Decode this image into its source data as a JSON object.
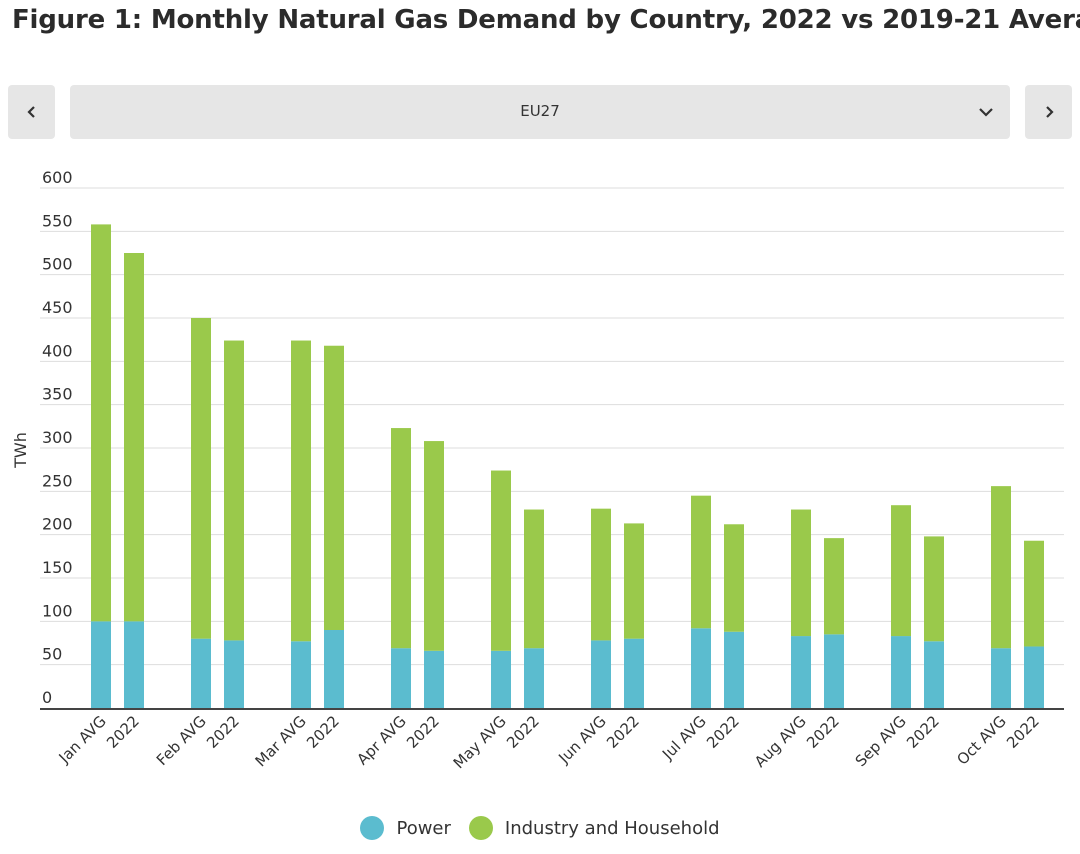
{
  "title": "Figure 1: Monthly Natural Gas Demand by Country, 2022 vs 2019-21 Average",
  "selector": {
    "value": "EU27"
  },
  "colors": {
    "power": "#5bbccf",
    "industry": "#9ac94b",
    "grid": "#dddddd",
    "axis": "#444444"
  },
  "chart_data": {
    "type": "bar",
    "stacked": true,
    "title": "Figure 1: Monthly Natural Gas Demand by Country, 2022 vs 2019-21 Average",
    "ylabel": "TWh",
    "xlabel": "",
    "ylim": [
      0,
      600
    ],
    "yticks": [
      "600",
      "550",
      "500",
      "450",
      "400",
      "350",
      "300",
      "250",
      "200",
      "150",
      "100",
      "50",
      "0"
    ],
    "categories": [
      "Jan AVG",
      "2022",
      "Feb AVG",
      "2022",
      "Mar AVG",
      "2022",
      "Apr AVG",
      "2022",
      "May AVG",
      "2022",
      "Jun AVG",
      "2022",
      "Jul AVG",
      "2022",
      "Aug AVG",
      "2022",
      "Sep AVG",
      "2022",
      "Oct AVG",
      "2022"
    ],
    "series": [
      {
        "name": "Power",
        "values": [
          100,
          100,
          80,
          78,
          77,
          90,
          69,
          66,
          66,
          69,
          78,
          80,
          92,
          88,
          83,
          85,
          83,
          77,
          69,
          71
        ]
      },
      {
        "name": "Industry and Household",
        "values": [
          458,
          425,
          370,
          346,
          347,
          328,
          254,
          242,
          208,
          160,
          152,
          133,
          153,
          124,
          146,
          111,
          151,
          121,
          187,
          122
        ]
      }
    ],
    "legend": [
      "Power",
      "Industry and Household"
    ],
    "grid": true
  }
}
